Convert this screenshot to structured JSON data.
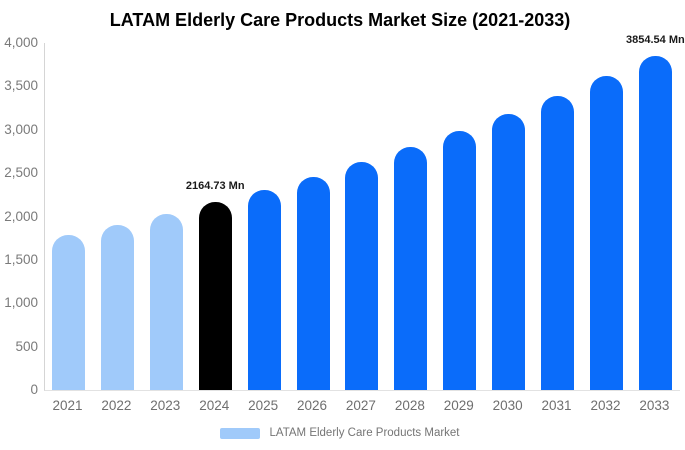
{
  "title": "LATAM Elderly Care Products Market Size (2021-2033)",
  "legend": {
    "label": "LATAM Elderly Care Products Market",
    "swatch_color": "#a0cafa"
  },
  "chart_data": {
    "type": "bar",
    "title": "LATAM Elderly Care Products Market Size (2021-2033)",
    "unit": "Mn",
    "categories": [
      "2021",
      "2022",
      "2023",
      "2024",
      "2025",
      "2026",
      "2027",
      "2028",
      "2029",
      "2030",
      "2031",
      "2032",
      "2033"
    ],
    "values": [
      1786.0,
      1904.2,
      2030.3,
      2164.73,
      2308.1,
      2460.9,
      2623.8,
      2797.5,
      2982.8,
      3180.2,
      3390.8,
      3615.3,
      3854.54
    ],
    "bar_color_roles": [
      "historical",
      "historical",
      "historical",
      "highlight",
      "forecast",
      "forecast",
      "forecast",
      "forecast",
      "forecast",
      "forecast",
      "forecast",
      "forecast",
      "forecast"
    ],
    "colors": {
      "historical": "#a0cafa",
      "highlight": "#000000",
      "forecast": "#0a6cfa",
      "axis_line": "#d5d5d5",
      "baseline": "#e2e2e2",
      "tick_text": "#7a7a7a",
      "value_label_text": "#1a1a1a"
    },
    "data_labels": [
      {
        "category": "2024",
        "text": "2164.73 Mn"
      },
      {
        "category": "2033",
        "text": "3854.54 Mn"
      }
    ],
    "ylim": [
      0,
      4000
    ],
    "y_tick_values": [
      0,
      500,
      1000,
      1500,
      2000,
      2500,
      3000,
      3500,
      4000
    ],
    "y_tick_labels": [
      "0",
      "500",
      "1,000",
      "1,500",
      "2,000",
      "2,500",
      "3,000",
      "3,500",
      "4,000"
    ],
    "grid": false,
    "legend_position": "bottom",
    "legend_entries": [
      "LATAM Elderly Care Products Market"
    ]
  }
}
